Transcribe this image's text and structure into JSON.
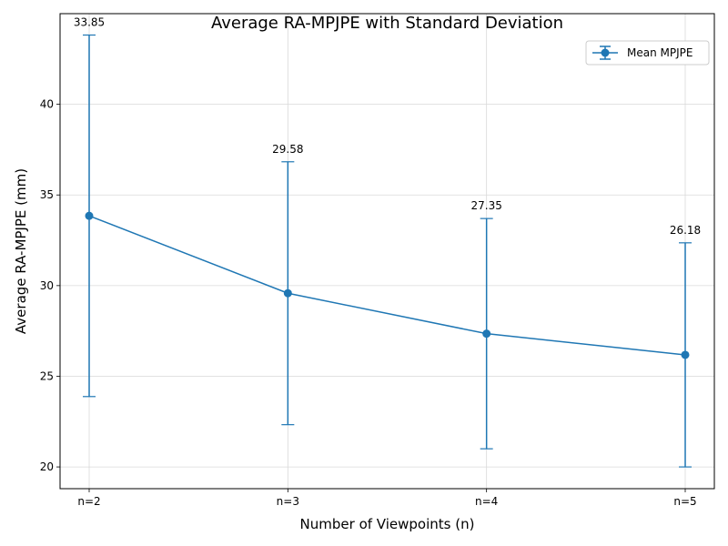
{
  "chart_data": {
    "type": "line",
    "title": "Average RA-MPJPE with Standard Deviation",
    "xlabel": "Number of Viewpoints (n)",
    "ylabel": "Average RA-MPJPE (mm)",
    "categories": [
      "n=2",
      "n=3",
      "n=4",
      "n=5"
    ],
    "series": [
      {
        "name": "Mean MPJPE",
        "values": [
          33.85,
          29.58,
          27.35,
          26.18
        ],
        "std": [
          9.97,
          7.25,
          6.35,
          6.18
        ],
        "color": "#1f77b4"
      }
    ],
    "data_labels": [
      "33.85",
      "29.58",
      "27.35",
      "26.18"
    ],
    "yticks": [
      20,
      25,
      30,
      35,
      40
    ],
    "ylim": [
      18.8,
      45.0
    ],
    "grid": true,
    "legend_position": "top-right"
  }
}
